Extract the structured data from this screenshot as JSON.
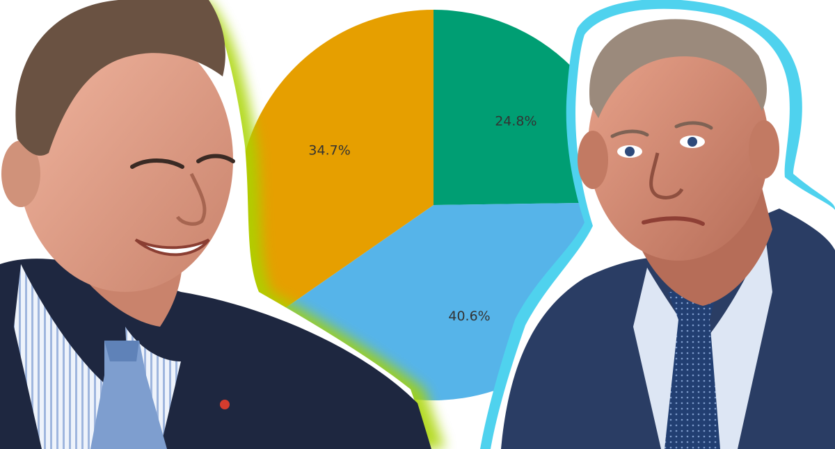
{
  "chart_data": {
    "type": "pie",
    "title": "",
    "slices": [
      {
        "label": "24.8%",
        "value": 24.8,
        "color": "#009E73"
      },
      {
        "label": "40.6%",
        "value": 40.6,
        "color": "#56B4E9"
      },
      {
        "label": "34.7%",
        "value": 34.7,
        "color": "#E69F00"
      }
    ],
    "start_angle": "12 o'clock",
    "direction": "clockwise",
    "legend": "none"
  },
  "photos": {
    "left_person": {
      "icon": "person-left-photo",
      "outline_color": "#a8d400"
    },
    "right_person": {
      "icon": "person-right-photo",
      "outline_color": "#4fd2ee"
    }
  }
}
